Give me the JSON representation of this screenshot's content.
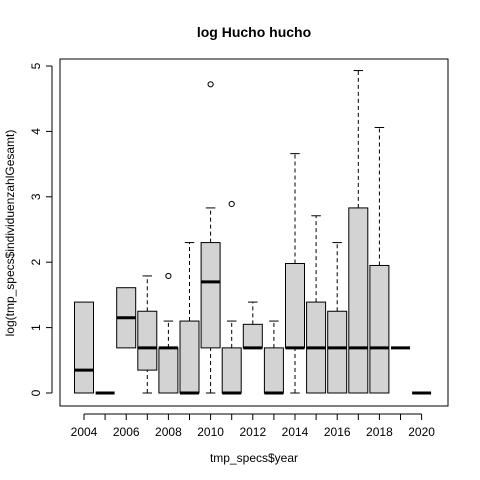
{
  "chart_data": {
    "type": "boxplot",
    "title": "log Hucho hucho",
    "xlabel": "tmp_specs$year",
    "ylabel": "log(tmp_specs$individuenzahlGesamt)",
    "ylim": [
      0,
      5
    ],
    "yticks": [
      0,
      1,
      2,
      3,
      4,
      5
    ],
    "xtick_labels": [
      "2004",
      "2006",
      "2008",
      "2010",
      "2012",
      "2014",
      "2016",
      "2018",
      "2020"
    ],
    "grid": false,
    "colors": {
      "box_fill": "#d3d3d3",
      "stroke": "#000000",
      "background": "#ffffff"
    },
    "boxes": [
      {
        "year": "2004",
        "min": 0,
        "q1": 0,
        "median": 0.35,
        "q3": 1.39,
        "max": 1.39,
        "outliers": []
      },
      {
        "year": "2005",
        "min": 0,
        "q1": 0,
        "median": 0,
        "q3": 0,
        "max": 0,
        "outliers": []
      },
      {
        "year": "2006",
        "min": 0.69,
        "q1": 0.69,
        "median": 1.15,
        "q3": 1.61,
        "max": 1.61,
        "outliers": []
      },
      {
        "year": "2007",
        "min": 0,
        "q1": 0.35,
        "median": 0.69,
        "q3": 1.25,
        "max": 1.79,
        "outliers": []
      },
      {
        "year": "2008",
        "min": 0,
        "q1": 0,
        "median": 0.69,
        "q3": 0.69,
        "max": 1.1,
        "outliers": [
          1.79
        ]
      },
      {
        "year": "2009",
        "min": 0,
        "q1": 0,
        "median": 0,
        "q3": 1.1,
        "max": 2.3,
        "outliers": []
      },
      {
        "year": "2010",
        "min": 0,
        "q1": 0.69,
        "median": 1.7,
        "q3": 2.3,
        "max": 2.83,
        "outliers": [
          4.72
        ]
      },
      {
        "year": "2011",
        "min": 0,
        "q1": 0,
        "median": 0,
        "q3": 0.69,
        "max": 1.1,
        "outliers": [
          2.89
        ]
      },
      {
        "year": "2012",
        "min": 0.69,
        "q1": 0.69,
        "median": 0.69,
        "q3": 1.05,
        "max": 1.39,
        "outliers": []
      },
      {
        "year": "2013",
        "min": 0,
        "q1": 0,
        "median": 0,
        "q3": 0.69,
        "max": 1.1,
        "outliers": []
      },
      {
        "year": "2014",
        "min": 0,
        "q1": 0.69,
        "median": 0.69,
        "q3": 1.98,
        "max": 3.66,
        "outliers": []
      },
      {
        "year": "2015",
        "min": 0,
        "q1": 0,
        "median": 0.69,
        "q3": 1.39,
        "max": 2.71,
        "outliers": []
      },
      {
        "year": "2016",
        "min": 0,
        "q1": 0,
        "median": 0.69,
        "q3": 1.25,
        "max": 2.3,
        "outliers": []
      },
      {
        "year": "2017",
        "min": 0,
        "q1": 0,
        "median": 0.69,
        "q3": 2.83,
        "max": 4.93,
        "outliers": []
      },
      {
        "year": "2018",
        "min": 0,
        "q1": 0,
        "median": 0.69,
        "q3": 1.95,
        "max": 4.06,
        "outliers": []
      },
      {
        "year": "2019",
        "min": 0.69,
        "q1": 0.69,
        "median": 0.69,
        "q3": 0.69,
        "max": 0.69,
        "outliers": []
      },
      {
        "year": "2020",
        "min": 0,
        "q1": 0,
        "median": 0,
        "q3": 0,
        "max": 0,
        "outliers": []
      }
    ]
  }
}
